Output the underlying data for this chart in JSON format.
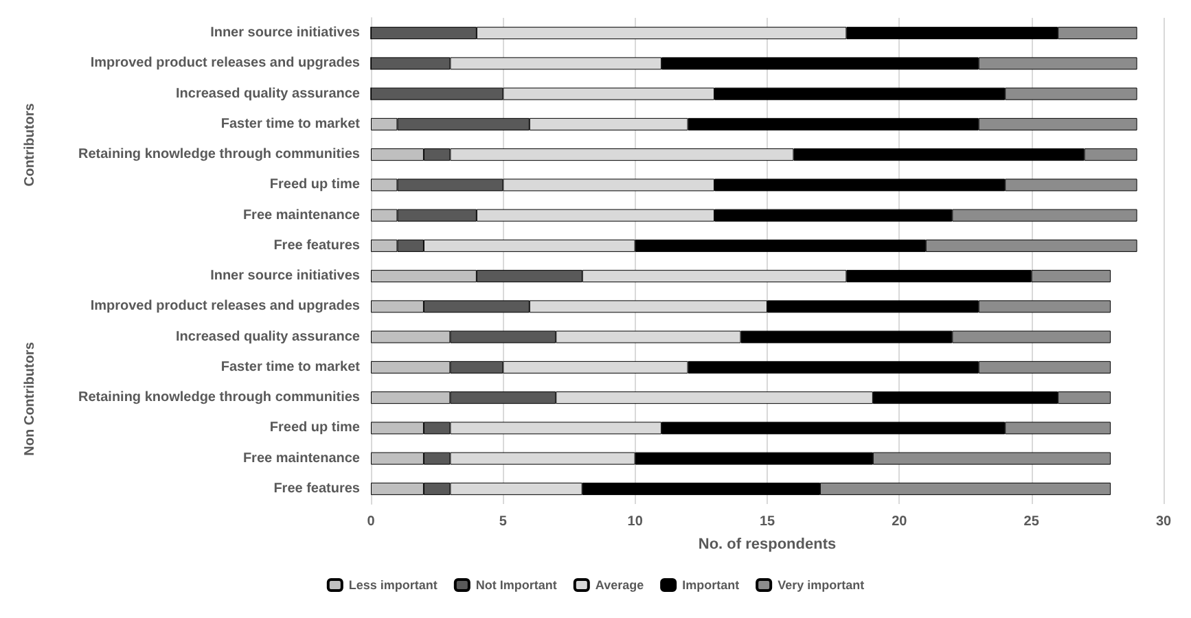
{
  "chart_data": {
    "type": "bar",
    "orientation": "horizontal",
    "stacked": true,
    "xlabel": "No. of respondents",
    "categories": [
      "Inner source initiatives",
      "Improved product releases and upgrades",
      "Increased quality assurance",
      "Faster time to market",
      "Retaining knowledge through communities",
      "Freed up time",
      "Free maintenance",
      "Free features",
      "Inner source initiatives",
      "Improved product releases and upgrades",
      "Increased quality assurance",
      "Faster time to market",
      "Retaining knowledge through communities",
      "Freed up time",
      "Free maintenance",
      "Free features"
    ],
    "annotations": [
      "Contributors",
      "Non Contributors"
    ],
    "series": [
      {
        "name": "Less important",
        "color": "#bfbfbf",
        "values": [
          0,
          0,
          0,
          1,
          2,
          1,
          1,
          1,
          4,
          2,
          3,
          3,
          3,
          2,
          2,
          2
        ]
      },
      {
        "name": "Not Important",
        "color": "#595959",
        "values": [
          4,
          3,
          5,
          5,
          1,
          4,
          3,
          1,
          4,
          4,
          4,
          2,
          4,
          1,
          1,
          1
        ]
      },
      {
        "name": "Average",
        "color": "#d9d9d9",
        "values": [
          14,
          8,
          8,
          6,
          13,
          8,
          9,
          8,
          10,
          9,
          7,
          7,
          12,
          8,
          7,
          5
        ]
      },
      {
        "name": "Important",
        "color": "#000000",
        "values": [
          8,
          12,
          11,
          11,
          11,
          11,
          9,
          11,
          7,
          8,
          8,
          11,
          7,
          13,
          9,
          9
        ]
      },
      {
        "name": "Very important",
        "color": "#8c8c8c",
        "values": [
          3,
          6,
          5,
          6,
          2,
          5,
          7,
          8,
          3,
          5,
          6,
          5,
          2,
          4,
          9,
          11
        ]
      }
    ],
    "xlim": [
      0,
      30
    ],
    "xticks": [
      0,
      5,
      10,
      15,
      20,
      25,
      30
    ],
    "grid": "x",
    "legend": "bottom"
  }
}
